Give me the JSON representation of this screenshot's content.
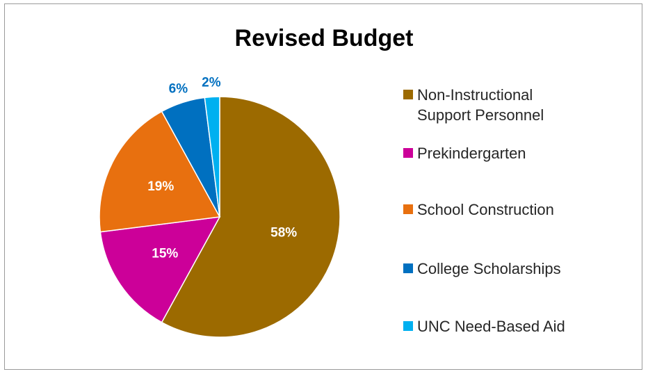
{
  "chart_data": {
    "type": "pie",
    "title": "Revised Budget",
    "categories": [
      "Non-Instructional Support Personnel",
      "Prekindergarten",
      "School Construction",
      "College Scholarships",
      "UNC Need-Based Aid"
    ],
    "values": [
      58,
      15,
      19,
      6,
      2
    ],
    "value_labels": [
      "58%",
      "15%",
      "19%",
      "6%",
      "2%"
    ],
    "colors": [
      "#9C6A00",
      "#CC0099",
      "#E8700F",
      "#0070C0",
      "#00B0F0"
    ],
    "label_colors": [
      "#ffffff",
      "#ffffff",
      "#ffffff",
      "#0070C0",
      "#0070C0"
    ],
    "start_angle_deg": 0,
    "direction": "clockwise",
    "legend_position": "right"
  }
}
